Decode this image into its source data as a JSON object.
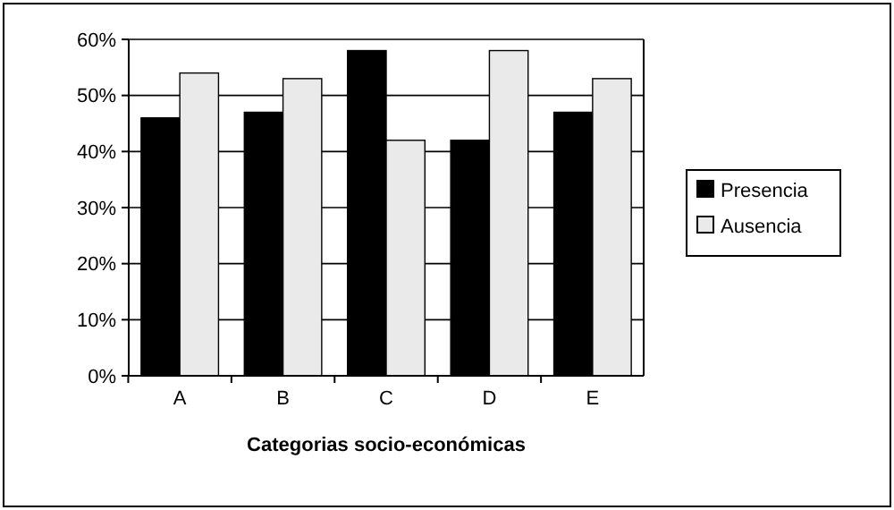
{
  "chart_data": {
    "type": "bar",
    "xlabel": "Categorias socio-económicas",
    "categories": [
      "A",
      "B",
      "C",
      "D",
      "E"
    ],
    "series": [
      {
        "name": "Presencia",
        "color": "#000000",
        "values": [
          46,
          47,
          58,
          42,
          47
        ]
      },
      {
        "name": "Ausencia",
        "color": "#eaeaea",
        "values": [
          54,
          53,
          42,
          58,
          53
        ]
      }
    ],
    "ylim": [
      0,
      60
    ],
    "yticks": [
      {
        "value": 0,
        "label": "0%"
      },
      {
        "value": 10,
        "label": "10%"
      },
      {
        "value": 20,
        "label": "20%"
      },
      {
        "value": 30,
        "label": "30%"
      },
      {
        "value": 40,
        "label": "40%"
      },
      {
        "value": 50,
        "label": "50%"
      },
      {
        "value": 60,
        "label": "60%"
      }
    ],
    "grid": "y",
    "legend": "right"
  }
}
